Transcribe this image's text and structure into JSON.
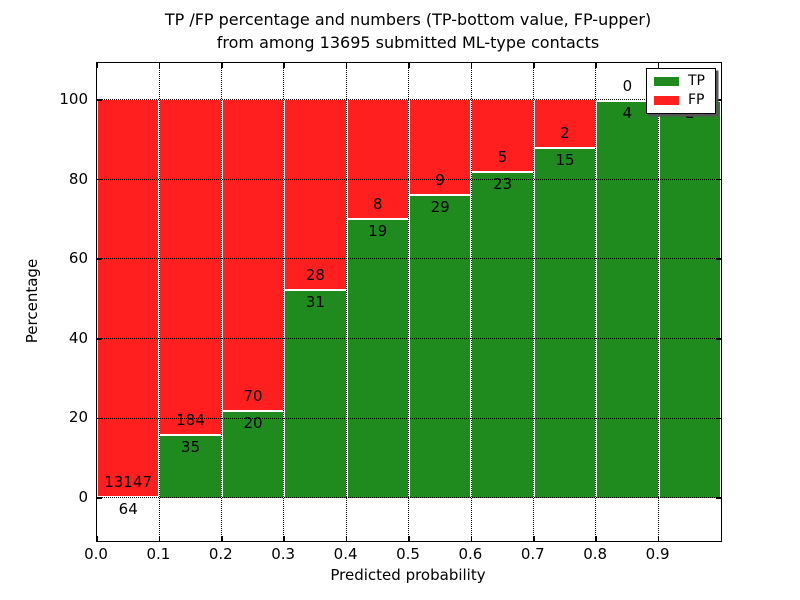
{
  "figure": {
    "title_line1": "TP /FP percentage and numbers (TP-bottom value, FP-upper)",
    "title_line2": "from among 13695 submitted ML-type contacts"
  },
  "chart_data": {
    "type": "bar",
    "stacked": true,
    "normalized": "percent",
    "title": "TP /FP percentage and numbers (TP-bottom value, FP-upper)\nfrom among 13695 submitted ML-type contacts",
    "total_contacts": 13695,
    "xlabel": "Predicted probability",
    "ylabel": "Percentage",
    "bin_width": 0.1,
    "bin_starts": [
      0.0,
      0.1,
      0.2,
      0.3,
      0.4,
      0.5,
      0.6,
      0.7,
      0.8,
      0.9
    ],
    "series": [
      {
        "name": "TP",
        "color": "#1f8b1f",
        "values": [
          64,
          35,
          20,
          31,
          19,
          29,
          23,
          15,
          4,
          2
        ]
      },
      {
        "name": "FP",
        "color": "#ff1f1f",
        "values": [
          13147,
          184,
          70,
          28,
          8,
          9,
          5,
          2,
          0,
          0
        ]
      }
    ],
    "bar_value_labels": {
      "tp_position": "below green top",
      "fp_position": "above green top"
    },
    "x_tick_labels": [
      "0.0",
      "0.1",
      "0.2",
      "0.3",
      "0.4",
      "0.5",
      "0.6",
      "0.7",
      "0.8",
      "0.9"
    ],
    "y_tick_values": [
      0,
      20,
      40,
      60,
      80,
      100
    ],
    "xlim": [
      0.0,
      1.0
    ],
    "ylim": [
      -10.8,
      109.3
    ],
    "grid": {
      "style": "dotted",
      "color": "#000000"
    },
    "legend": {
      "position": "upper-right",
      "entries": [
        {
          "label": "TP",
          "color": "#1f8b1f"
        },
        {
          "label": "FP",
          "color": "#ff1f1f"
        }
      ]
    }
  },
  "colors": {
    "tp": "#1f8b1f",
    "fp": "#ff1f1f",
    "background": "#ffffff",
    "text": "#000000",
    "bar_edge": "#ffffff"
  }
}
